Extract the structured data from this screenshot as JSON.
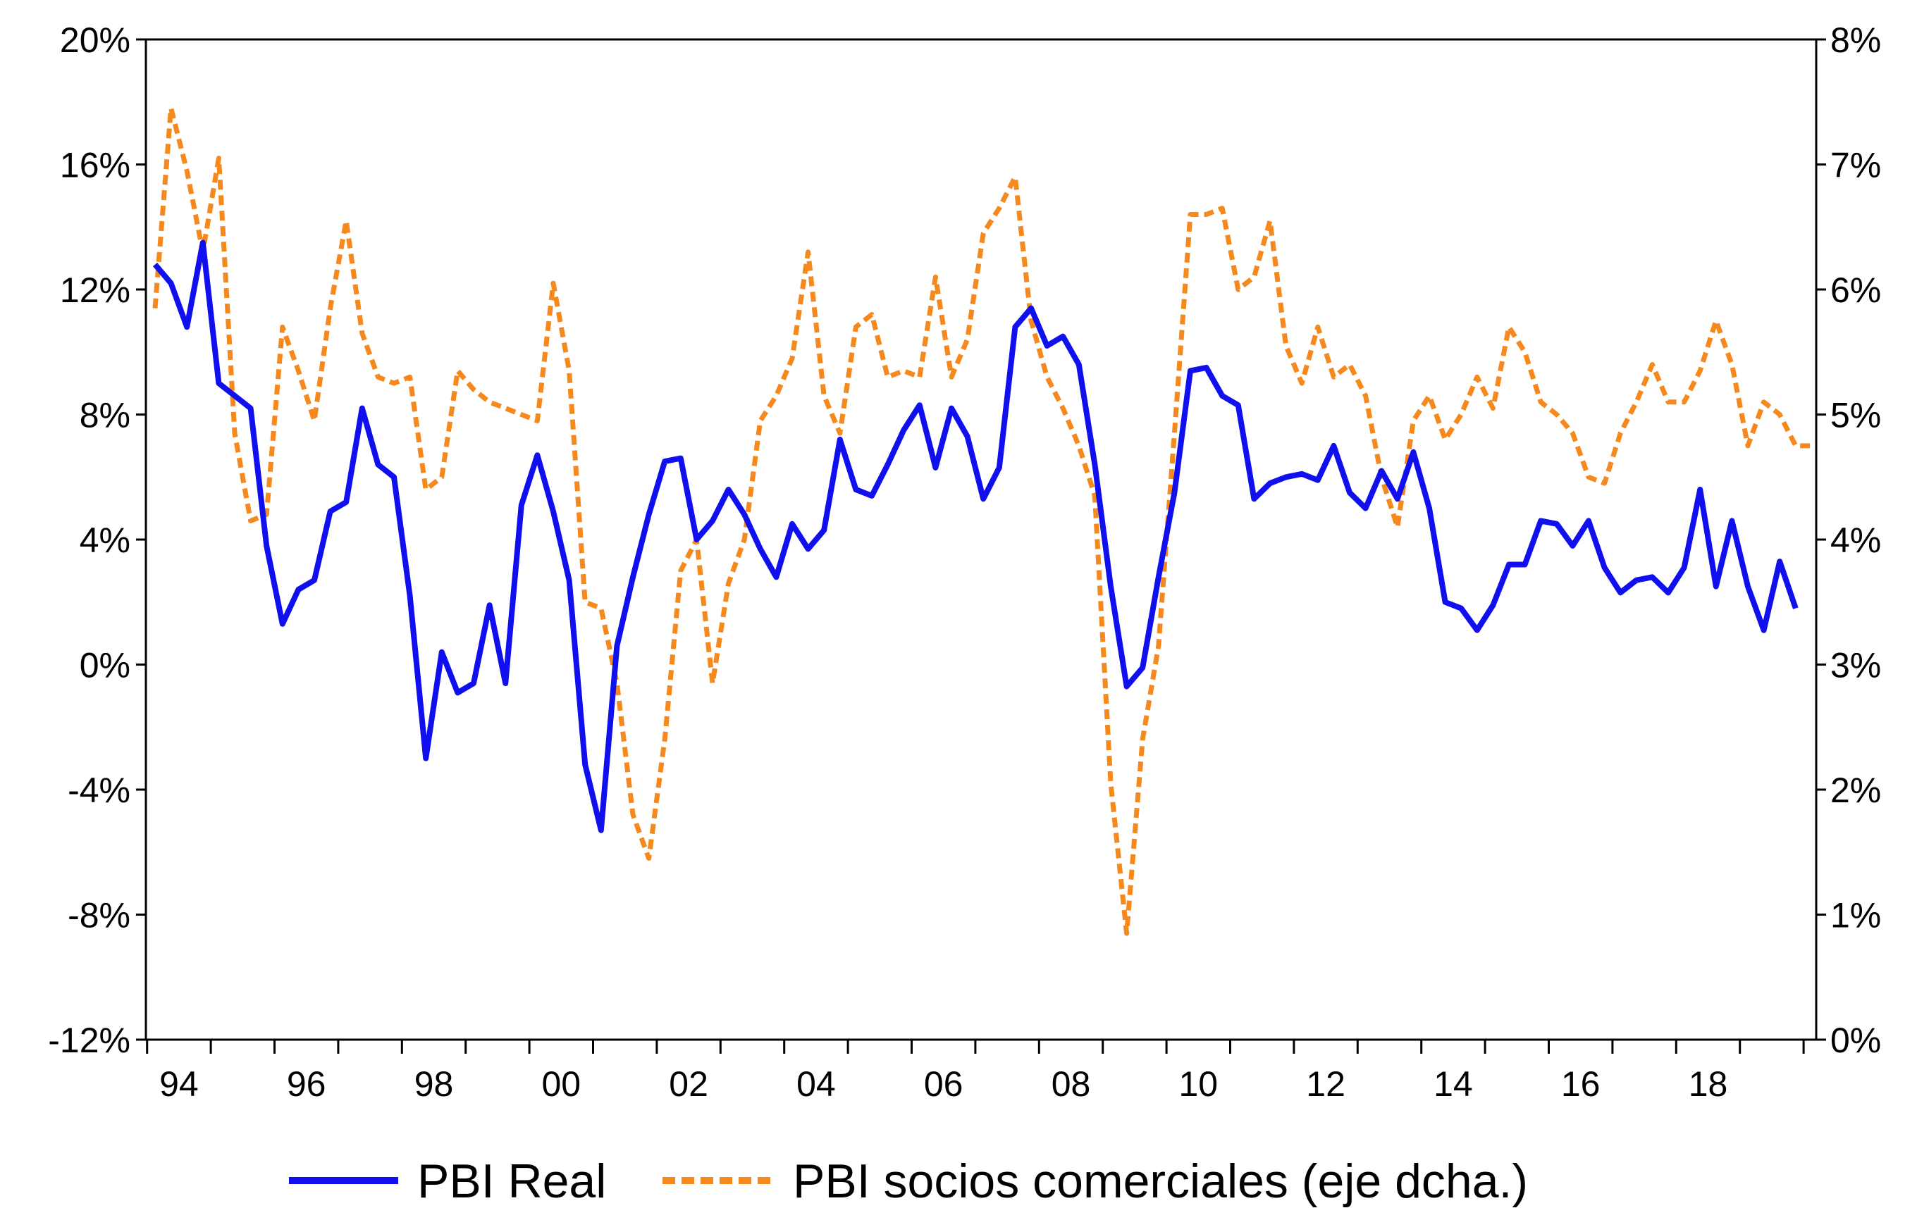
{
  "chart_data": {
    "type": "line",
    "title": "",
    "xlabel": "",
    "ylabel": "",
    "x_start": "1994Q1",
    "frequency": "quarterly",
    "x_tick_labels": [
      "94",
      "96",
      "98",
      "00",
      "02",
      "04",
      "06",
      "08",
      "10",
      "12",
      "14",
      "16",
      "18"
    ],
    "y_left": {
      "ylim": [
        -12,
        20
      ],
      "ticks": [
        20,
        16,
        12,
        8,
        4,
        0,
        -4,
        -8,
        -12
      ],
      "tick_labels": [
        "20%",
        "16%",
        "12%",
        "8%",
        "4%",
        "0%",
        "-4%",
        "-8%",
        "-12%"
      ]
    },
    "y_right": {
      "ylim": [
        0,
        8
      ],
      "ticks": [
        8,
        7,
        6,
        5,
        4,
        3,
        2,
        1,
        0
      ],
      "tick_labels": [
        "8%",
        "7%",
        "6%",
        "5%",
        "4%",
        "3%",
        "2%",
        "1%",
        "0%"
      ]
    },
    "grid": false,
    "legend_position": "bottom",
    "series": [
      {
        "name": "PBI Real",
        "axis": "left",
        "color": "#1010ee",
        "style": "solid",
        "values": [
          12.8,
          12.2,
          10.8,
          13.5,
          9.0,
          8.6,
          8.2,
          3.8,
          1.3,
          2.4,
          2.7,
          4.9,
          5.2,
          8.2,
          6.4,
          6.0,
          2.2,
          -3.0,
          0.4,
          -0.9,
          -0.6,
          1.9,
          -0.6,
          5.1,
          6.7,
          4.9,
          2.7,
          -3.2,
          -5.3,
          0.6,
          2.8,
          4.8,
          6.5,
          6.6,
          4.0,
          4.6,
          5.6,
          4.8,
          3.7,
          2.8,
          4.5,
          3.7,
          4.3,
          7.2,
          5.6,
          5.4,
          6.4,
          7.5,
          8.3,
          6.3,
          8.2,
          7.3,
          5.3,
          6.3,
          10.8,
          11.4,
          10.2,
          10.5,
          9.6,
          6.4,
          2.5,
          -0.7,
          -0.1,
          2.8,
          5.5,
          9.4,
          9.5,
          8.6,
          8.3,
          5.3,
          5.8,
          6.0,
          6.1,
          5.9,
          7.0,
          5.5,
          5.0,
          6.2,
          5.3,
          6.8,
          5.0,
          2.0,
          1.8,
          1.1,
          1.9,
          3.2,
          3.2,
          4.6,
          4.5,
          3.8,
          4.6,
          3.1,
          2.3,
          2.7,
          2.8,
          2.3,
          3.1,
          5.6,
          2.5,
          4.6,
          2.5,
          1.1,
          3.3,
          1.8
        ]
      },
      {
        "name": "PBI socios comerciales (eje dcha.)",
        "axis": "right",
        "color": "#f5891e",
        "style": "dashed",
        "values": [
          5.85,
          7.45,
          6.95,
          6.3,
          7.05,
          4.85,
          4.15,
          4.2,
          5.7,
          5.35,
          4.95,
          5.85,
          6.55,
          5.65,
          5.3,
          5.25,
          5.3,
          4.4,
          4.5,
          5.35,
          5.2,
          5.1,
          5.05,
          5.0,
          4.95,
          6.05,
          5.35,
          3.5,
          3.45,
          2.85,
          1.8,
          1.45,
          2.4,
          3.75,
          4.0,
          2.85,
          3.65,
          4.0,
          4.95,
          5.15,
          5.45,
          6.3,
          5.15,
          4.85,
          5.7,
          5.8,
          5.3,
          5.35,
          5.3,
          6.1,
          5.3,
          5.6,
          6.45,
          6.65,
          6.9,
          5.75,
          5.3,
          5.05,
          4.75,
          4.35,
          2.05,
          0.85,
          2.4,
          3.15,
          4.85,
          6.6,
          6.6,
          6.65,
          6.0,
          6.1,
          6.55,
          5.55,
          5.25,
          5.7,
          5.3,
          5.4,
          5.15,
          4.5,
          4.1,
          4.95,
          5.15,
          4.8,
          5.0,
          5.3,
          5.05,
          5.7,
          5.5,
          5.1,
          5.0,
          4.85,
          4.5,
          4.45,
          4.85,
          5.1,
          5.4,
          5.1,
          5.1,
          5.35,
          5.75,
          5.4,
          4.75,
          5.1,
          5.0,
          4.75,
          4.75
        ]
      }
    ]
  }
}
